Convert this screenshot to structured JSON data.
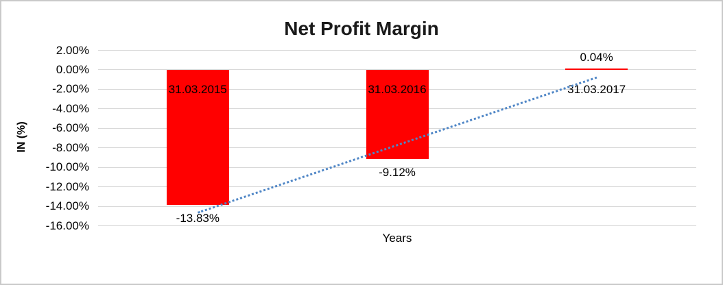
{
  "window": {
    "background": "#ffffff",
    "border_color": "#c9c9c9"
  },
  "chart_data": {
    "type": "bar",
    "title": "Net Profit Margin",
    "xlabel": "Years",
    "ylabel": "IN (%)",
    "categories": [
      "31.03.2015",
      "31.03.2016",
      "31.03.2017"
    ],
    "values": [
      -13.83,
      -9.12,
      0.04
    ],
    "value_labels": [
      "-13.83%",
      "-9.12%",
      "0.04%"
    ],
    "ytick_labels": [
      "2.00%",
      "0.00%",
      "-2.00%",
      "-4.00%",
      "-6.00%",
      "-8.00%",
      "-10.00%",
      "-12.00%",
      "-14.00%",
      "-16.00%"
    ],
    "ylim": [
      -16,
      2
    ],
    "ytick_step": 2,
    "grid": true,
    "legend": "none",
    "bar_color": "#ff0000",
    "gridline_color": "#d9d9d9",
    "label_color": "#000000",
    "trendline": {
      "type": "linear",
      "style": "dotted",
      "color": "#4f86c6"
    }
  }
}
